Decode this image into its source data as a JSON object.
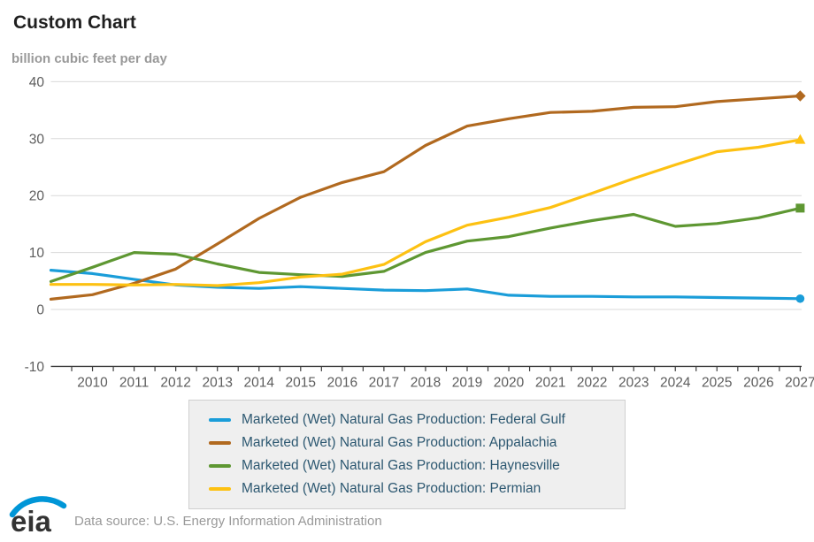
{
  "header": {
    "title": "Custom Chart",
    "subtitle": "billion cubic feet per day"
  },
  "chart_data": {
    "type": "line",
    "title": "Custom Chart",
    "ylabel": "billion cubic feet per day",
    "xlabel": "",
    "x": [
      2009,
      2010,
      2011,
      2012,
      2013,
      2014,
      2015,
      2016,
      2017,
      2018,
      2019,
      2020,
      2021,
      2022,
      2023,
      2024,
      2025,
      2026,
      2027
    ],
    "x_tick_labels": [
      "2010",
      "2011",
      "2012",
      "2013",
      "2014",
      "2015",
      "2016",
      "2017",
      "2018",
      "2019",
      "2020",
      "2021",
      "2022",
      "2023",
      "2024",
      "2025",
      "2026",
      "2027"
    ],
    "ylim": [
      -10,
      40
    ],
    "y_ticks": [
      -10,
      0,
      10,
      20,
      30,
      40
    ],
    "grid": "horizontal",
    "legend_position": "bottom",
    "series": [
      {
        "name": "Marketed (Wet) Natural Gas Production: Federal Gulf",
        "color": "#1a9dd9",
        "end_marker": "circle",
        "values": [
          6.9,
          6.3,
          5.3,
          4.3,
          3.9,
          3.7,
          4.0,
          3.7,
          3.4,
          3.3,
          3.6,
          2.5,
          2.3,
          2.3,
          2.2,
          2.2,
          2.1,
          2.0,
          1.9
        ]
      },
      {
        "name": "Marketed (Wet) Natural Gas Production: Appalachia",
        "color": "#b1691f",
        "end_marker": "diamond",
        "values": [
          1.8,
          2.6,
          4.6,
          7.1,
          11.5,
          16.0,
          19.7,
          22.3,
          24.2,
          28.8,
          32.2,
          33.5,
          34.6,
          34.8,
          35.5,
          35.6,
          36.5,
          37.0,
          37.5
        ]
      },
      {
        "name": "Marketed (Wet) Natural Gas Production: Haynesville",
        "color": "#5e9732",
        "end_marker": "square",
        "values": [
          4.9,
          7.4,
          10.0,
          9.7,
          8.0,
          6.5,
          6.1,
          5.8,
          6.7,
          10.0,
          12.0,
          12.8,
          14.3,
          15.6,
          16.7,
          14.6,
          15.1,
          16.1,
          17.8
        ]
      },
      {
        "name": "Marketed (Wet) Natural Gas Production: Permian",
        "color": "#fdc112",
        "end_marker": "triangle",
        "values": [
          4.4,
          4.4,
          4.3,
          4.4,
          4.2,
          4.7,
          5.7,
          6.2,
          7.9,
          11.9,
          14.8,
          16.2,
          17.9,
          20.4,
          23.0,
          25.4,
          27.7,
          28.5,
          29.8
        ]
      }
    ]
  },
  "colors": {
    "grid": "#d9d9d9",
    "axis": "#3c3c3c",
    "axis_label": "#5d5d5d",
    "legend_text": "#2d5871",
    "eia_blue": "#0096d7"
  },
  "footer": {
    "logo_text": "eia",
    "source": "Data source: U.S. Energy Information Administration"
  }
}
